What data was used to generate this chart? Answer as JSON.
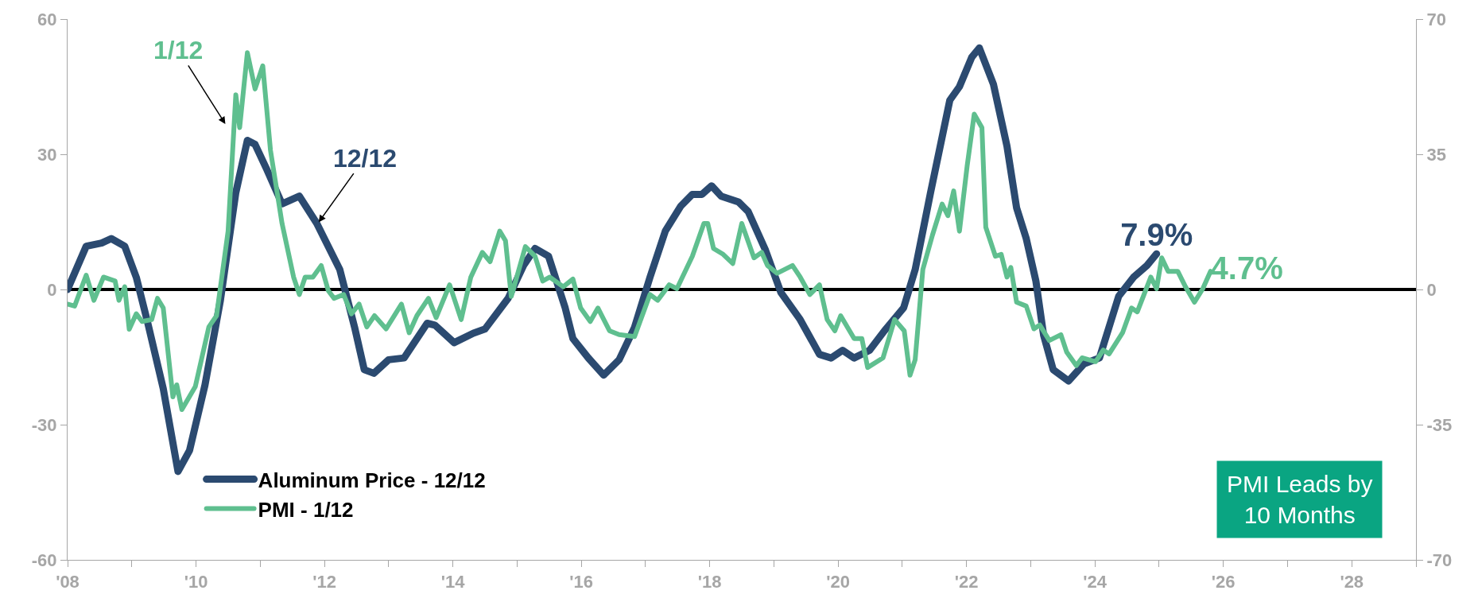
{
  "chart_data": {
    "type": "line",
    "xlim": [
      2008,
      2029
    ],
    "xticks": [
      {
        "value": 2008,
        "label": "'08"
      },
      {
        "value": 2009,
        "label": null
      },
      {
        "value": 2010,
        "label": "'10"
      },
      {
        "value": 2011,
        "label": null
      },
      {
        "value": 2012,
        "label": "'12"
      },
      {
        "value": 2013,
        "label": null
      },
      {
        "value": 2014,
        "label": "'14"
      },
      {
        "value": 2015,
        "label": null
      },
      {
        "value": 2016,
        "label": "'16"
      },
      {
        "value": 2017,
        "label": null
      },
      {
        "value": 2018,
        "label": "'18"
      },
      {
        "value": 2019,
        "label": null
      },
      {
        "value": 2020,
        "label": "'20"
      },
      {
        "value": 2021,
        "label": null
      },
      {
        "value": 2022,
        "label": "'22"
      },
      {
        "value": 2023,
        "label": null
      },
      {
        "value": 2024,
        "label": "'24"
      },
      {
        "value": 2025,
        "label": null
      },
      {
        "value": 2026,
        "label": "'26"
      },
      {
        "value": 2027,
        "label": null
      },
      {
        "value": 2028,
        "label": "'28"
      },
      {
        "value": 2029,
        "label": null
      }
    ],
    "ylim": [
      -60,
      60
    ],
    "yticks": [
      -60,
      -30,
      0,
      30,
      60
    ],
    "y2lim": [
      -70,
      70
    ],
    "y2ticks": [
      -70,
      -35,
      0,
      35,
      70
    ],
    "grid": false,
    "legend": "bottom left",
    "line_style": "solid",
    "ref_lines": [
      {
        "axis": "y",
        "value": 0,
        "label": null,
        "color": "#000000"
      }
    ],
    "annotations": [
      "1/12",
      {
        "text": "12/12",
        "x": 2011.91,
        "y": 14.9
      },
      "PMI Leads by\n10 Months"
    ],
    "series": [
      {
        "name": "Aluminum Price - 12/12",
        "color": "#2b4a70",
        "axis": "y",
        "x": [
          2008.0,
          2008.29,
          2008.53,
          2008.68,
          2008.89,
          2009.07,
          2009.25,
          2009.49,
          2009.72,
          2009.9,
          2010.14,
          2010.38,
          2010.62,
          2010.8,
          2010.92,
          2011.1,
          2011.34,
          2011.61,
          2011.88,
          2012.24,
          2012.47,
          2012.62,
          2012.77,
          2013.0,
          2013.24,
          2013.6,
          2013.72,
          2014.02,
          2014.32,
          2014.5,
          2014.86,
          2015.1,
          2015.28,
          2015.49,
          2015.75,
          2015.87,
          2016.11,
          2016.35,
          2016.59,
          2016.83,
          2017.07,
          2017.31,
          2017.55,
          2017.73,
          2017.88,
          2018.03,
          2018.18,
          2018.45,
          2018.6,
          2018.87,
          2019.11,
          2019.41,
          2019.71,
          2019.89,
          2020.07,
          2020.25,
          2020.49,
          2020.72,
          2021.02,
          2021.2,
          2021.44,
          2021.74,
          2021.89,
          2022.08,
          2022.2,
          2022.42,
          2022.63,
          2022.78,
          2022.93,
          2023.08,
          2023.2,
          2023.35,
          2023.59,
          2023.83,
          2024.07,
          2024.37,
          2024.6,
          2024.81,
          2024.96
        ],
        "values": [
          0,
          9.6,
          10.3,
          11.3,
          9.6,
          2.7,
          -7.5,
          -22,
          -40.4,
          -35.7,
          -21.2,
          -2.4,
          21.5,
          33.1,
          32.2,
          26.7,
          19,
          20.7,
          14.7,
          4.4,
          -8.4,
          -17.8,
          -18.6,
          -15.6,
          -15.2,
          -7.5,
          -7.9,
          -11.8,
          -9.7,
          -8.8,
          -2,
          5.3,
          9.1,
          7.4,
          -4.1,
          -10.9,
          -15.2,
          -19,
          -15.6,
          -8.4,
          2.7,
          13,
          18.5,
          21.1,
          21.1,
          23,
          20.7,
          19.4,
          17.3,
          8.7,
          -0.7,
          -6.7,
          -14.4,
          -15.2,
          -13.5,
          -15.2,
          -13.5,
          -9.2,
          -4.1,
          4.4,
          21.5,
          42,
          45,
          51.5,
          53.6,
          45.5,
          31.8,
          18.1,
          11.3,
          1.9,
          -10.1,
          -17.8,
          -20.3,
          -16.5,
          -15.2,
          -1.5,
          2.7,
          5.3,
          7.9
        ],
        "value_labels": [
          null,
          null,
          null,
          null,
          null,
          null,
          null,
          null,
          null,
          null,
          null,
          null,
          null,
          null,
          null,
          null,
          null,
          null,
          null,
          null,
          null,
          null,
          null,
          null,
          null,
          null,
          null,
          null,
          null,
          null,
          null,
          null,
          null,
          null,
          null,
          null,
          null,
          null,
          null,
          null,
          null,
          null,
          null,
          null,
          null,
          null,
          null,
          null,
          null,
          null,
          null,
          null,
          null,
          null,
          null,
          null,
          null,
          null,
          null,
          null,
          null,
          null,
          null,
          null,
          null,
          null,
          null,
          null,
          null,
          null,
          null,
          null,
          null,
          null,
          null,
          null,
          null,
          null,
          "7.9%"
        ]
      },
      {
        "name": "PMI - 1/12",
        "color": "#5fbf8f",
        "axis": "y2",
        "x": [
          2008.0,
          2008.11,
          2008.29,
          2008.41,
          2008.56,
          2008.74,
          2008.8,
          2008.89,
          2008.96,
          2009.07,
          2009.16,
          2009.31,
          2009.4,
          2009.49,
          2009.64,
          2009.7,
          2009.78,
          2009.99,
          2010.2,
          2010.32,
          2010.5,
          2010.62,
          2010.68,
          2010.8,
          2010.92,
          2011.04,
          2011.16,
          2011.34,
          2011.52,
          2011.61,
          2011.7,
          2011.82,
          2011.95,
          2012.06,
          2012.15,
          2012.3,
          2012.42,
          2012.54,
          2012.66,
          2012.78,
          2012.96,
          2013.2,
          2013.32,
          2013.44,
          2013.62,
          2013.74,
          2013.95,
          2014.13,
          2014.28,
          2014.46,
          2014.58,
          2014.73,
          2014.82,
          2014.91,
          2015.13,
          2015.28,
          2015.4,
          2015.51,
          2015.72,
          2015.87,
          2015.99,
          2016.14,
          2016.26,
          2016.44,
          2016.59,
          2016.83,
          2017.07,
          2017.19,
          2017.37,
          2017.49,
          2017.73,
          2017.91,
          2017.97,
          2018.06,
          2018.21,
          2018.36,
          2018.5,
          2018.69,
          2018.81,
          2018.9,
          2019.05,
          2019.29,
          2019.41,
          2019.56,
          2019.71,
          2019.83,
          2019.95,
          2020.04,
          2020.25,
          2020.37,
          2020.46,
          2020.7,
          2020.88,
          2021.03,
          2021.12,
          2021.2,
          2021.32,
          2021.47,
          2021.62,
          2021.71,
          2021.8,
          2021.89,
          2022.01,
          2022.12,
          2022.24,
          2022.3,
          2022.45,
          2022.54,
          2022.63,
          2022.69,
          2022.78,
          2022.93,
          2023.05,
          2023.14,
          2023.29,
          2023.47,
          2023.56,
          2023.71,
          2023.8,
          2024.01,
          2024.13,
          2024.22,
          2024.43,
          2024.57,
          2024.66,
          2024.87,
          2024.96,
          2025.04,
          2025.14,
          2025.29,
          2025.41,
          2025.55,
          2025.68,
          2025.8
        ],
        "values": [
          -3.8,
          -4.3,
          3.7,
          -2.8,
          3.2,
          2.2,
          -2.8,
          0.7,
          -10.3,
          -6.3,
          -8.3,
          -7.8,
          -2.3,
          -4.8,
          -27.8,
          -24.7,
          -31.1,
          -25.1,
          -9.7,
          -6.8,
          15.1,
          50.4,
          41.9,
          61.3,
          51.9,
          57.9,
          36,
          17.1,
          3.2,
          -1.3,
          3.2,
          3.2,
          6.2,
          -0.3,
          -2.3,
          -1.3,
          -6.3,
          -3.8,
          -9.7,
          -6.8,
          -10.2,
          -3.8,
          -11.2,
          -6.8,
          -2.3,
          -7.3,
          1.2,
          -7.8,
          3.2,
          9.6,
          7.2,
          15.1,
          12.6,
          -1.8,
          11.1,
          8.6,
          2.2,
          3.2,
          0.7,
          2.7,
          -4.8,
          -8.3,
          -4.8,
          -10.7,
          -11.7,
          -12.2,
          -1.3,
          -2.8,
          1.2,
          0.2,
          8.6,
          17.1,
          17.1,
          10.6,
          9.1,
          6.7,
          17.1,
          8.2,
          9.6,
          6.2,
          4.2,
          6.2,
          3.2,
          -1.3,
          1.2,
          -7.8,
          -10.7,
          -6.8,
          -12.7,
          -12.7,
          -20.2,
          -17.7,
          -7.8,
          -10.7,
          -22.2,
          -18.2,
          5.2,
          14.1,
          22.1,
          19.1,
          25.5,
          15.1,
          32,
          45.4,
          41.9,
          16.1,
          8.6,
          9.1,
          3.2,
          5.7,
          -3.3,
          -4.3,
          -10.2,
          -9.2,
          -13.2,
          -11.7,
          -16.2,
          -19.7,
          -17.7,
          -18.7,
          -15.7,
          -16.7,
          -11.2,
          -4.8,
          -5.8,
          3.2,
          0.2,
          8.2,
          4.7,
          4.7,
          0.7,
          -3.3,
          0.2,
          4.7
        ],
        "value_labels": [
          null,
          null,
          null,
          null,
          null,
          null,
          null,
          null,
          null,
          null,
          null,
          null,
          null,
          null,
          null,
          null,
          null,
          null,
          null,
          null,
          null,
          null,
          null,
          null,
          null,
          null,
          null,
          null,
          null,
          null,
          null,
          null,
          null,
          null,
          null,
          null,
          null,
          null,
          null,
          null,
          null,
          null,
          null,
          null,
          null,
          null,
          null,
          null,
          null,
          null,
          null,
          null,
          null,
          null,
          null,
          null,
          null,
          null,
          null,
          null,
          null,
          null,
          null,
          null,
          null,
          null,
          null,
          null,
          null,
          null,
          null,
          null,
          null,
          null,
          null,
          null,
          null,
          null,
          null,
          null,
          null,
          null,
          null,
          null,
          null,
          null,
          null,
          null,
          null,
          null,
          null,
          null,
          null,
          null,
          null,
          null,
          null,
          null,
          null,
          null,
          null,
          null,
          null,
          null,
          null,
          null,
          null,
          null,
          null,
          null,
          null,
          null,
          null,
          null,
          null,
          null,
          null,
          null,
          null,
          null,
          null,
          null,
          null,
          null,
          null,
          null,
          null,
          null,
          null,
          null,
          null,
          null,
          null,
          "4.7%"
        ]
      }
    ]
  }
}
